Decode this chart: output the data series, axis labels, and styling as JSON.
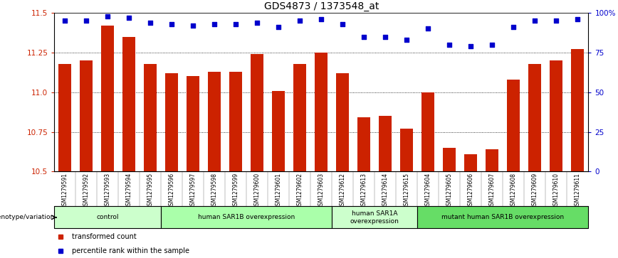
{
  "title": "GDS4873 / 1373548_at",
  "samples": [
    "GSM1279591",
    "GSM1279592",
    "GSM1279593",
    "GSM1279594",
    "GSM1279595",
    "GSM1279596",
    "GSM1279597",
    "GSM1279598",
    "GSM1279599",
    "GSM1279600",
    "GSM1279601",
    "GSM1279602",
    "GSM1279603",
    "GSM1279612",
    "GSM1279613",
    "GSM1279614",
    "GSM1279615",
    "GSM1279604",
    "GSM1279605",
    "GSM1279606",
    "GSM1279607",
    "GSM1279608",
    "GSM1279609",
    "GSM1279610",
    "GSM1279611"
  ],
  "bar_values": [
    11.18,
    11.2,
    11.42,
    11.35,
    11.18,
    11.12,
    11.1,
    11.13,
    11.13,
    11.24,
    11.01,
    11.18,
    11.25,
    11.12,
    10.84,
    10.85,
    10.77,
    11.0,
    10.65,
    10.61,
    10.64,
    11.08,
    11.18,
    11.2,
    11.27
  ],
  "percentile_values": [
    95,
    95,
    98,
    97,
    94,
    93,
    92,
    93,
    93,
    94,
    91,
    95,
    96,
    93,
    85,
    85,
    83,
    90,
    80,
    79,
    80,
    91,
    95,
    95,
    96
  ],
  "ylim_min": 10.5,
  "ylim_max": 11.5,
  "y_ticks": [
    10.5,
    10.75,
    11.0,
    11.25,
    11.5
  ],
  "right_yticks": [
    0,
    25,
    50,
    75,
    100
  ],
  "right_yticklabels": [
    "0",
    "25",
    "50",
    "75",
    "100%"
  ],
  "bar_color": "#cc2200",
  "dot_color": "#0000cc",
  "groups": [
    {
      "label": "control",
      "start": 0,
      "end": 5,
      "color": "#ccffcc"
    },
    {
      "label": "human SAR1B overexpression",
      "start": 5,
      "end": 13,
      "color": "#aaffaa"
    },
    {
      "label": "human SAR1A\noverexpression",
      "start": 13,
      "end": 17,
      "color": "#ccffcc"
    },
    {
      "label": "mutant human SAR1B overexpression",
      "start": 17,
      "end": 25,
      "color": "#66dd66"
    }
  ],
  "genotype_label": "genotype/variation",
  "legend_bar_label": "transformed count",
  "legend_dot_label": "percentile rank within the sample",
  "tick_bg_color": "#cccccc"
}
